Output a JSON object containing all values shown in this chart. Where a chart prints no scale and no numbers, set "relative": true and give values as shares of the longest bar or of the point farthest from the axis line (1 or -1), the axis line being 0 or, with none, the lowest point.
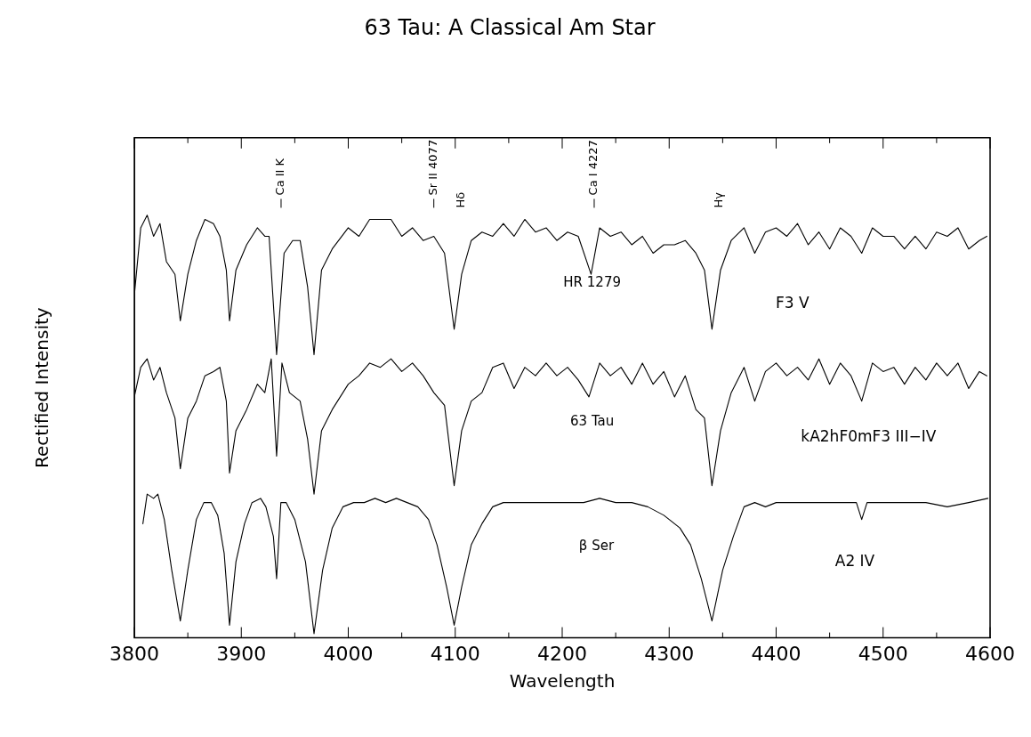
{
  "chart_data": {
    "type": "line",
    "title": "63 Tau: A Classical Am Star",
    "xlabel": "Wavelength",
    "ylabel": "Rectified Intensity",
    "relative": true,
    "xlim": [
      3800,
      4600
    ],
    "xticks": [
      3800,
      3900,
      4000,
      4100,
      4200,
      4300,
      4400,
      4500,
      4600
    ],
    "grid": false,
    "legend": false,
    "marker": "none",
    "line_style": "solid",
    "annotations": [
      "Ca II K",
      "Sr II 4077",
      "Hδ",
      "Ca I 4227",
      "Hγ",
      "F3 V",
      "kA2hF0mF3 III−IV",
      "A2 IV"
    ],
    "series": [
      {
        "name": "HR 1279",
        "color": "#000000",
        "x": [
          3800,
          3806,
          3812,
          3818,
          3824,
          3830,
          3838,
          3843,
          3850,
          3858,
          3866,
          3874,
          3880,
          3886,
          3889,
          3895,
          3905,
          3915,
          3922,
          3926,
          3933,
          3940,
          3948,
          3955,
          3962,
          3968,
          3975,
          3985,
          4000,
          4010,
          4020,
          4030,
          4040,
          4050,
          4060,
          4070,
          4080,
          4090,
          4099,
          4106,
          4115,
          4125,
          4135,
          4145,
          4155,
          4165,
          4175,
          4185,
          4195,
          4205,
          4215,
          4227,
          4235,
          4245,
          4255,
          4265,
          4275,
          4285,
          4295,
          4305,
          4315,
          4325,
          4333,
          4340,
          4348,
          4358,
          4370,
          4380,
          4390,
          4400,
          4410,
          4420,
          4430,
          4440,
          4450,
          4460,
          4470,
          4480,
          4490,
          4500,
          4510,
          4520,
          4530,
          4540,
          4550,
          4560,
          4570,
          4580,
          4590,
          4597
        ],
        "values": [
          0.81,
          0.97,
          1.0,
          0.95,
          0.98,
          0.89,
          0.86,
          0.75,
          0.86,
          0.94,
          0.99,
          0.98,
          0.95,
          0.87,
          0.75,
          0.87,
          0.93,
          0.97,
          0.95,
          0.95,
          0.67,
          0.91,
          0.94,
          0.94,
          0.83,
          0.67,
          0.87,
          0.92,
          0.97,
          0.95,
          0.99,
          0.99,
          0.99,
          0.95,
          0.97,
          0.94,
          0.95,
          0.91,
          0.73,
          0.86,
          0.94,
          0.96,
          0.95,
          0.98,
          0.95,
          0.99,
          0.96,
          0.97,
          0.94,
          0.96,
          0.95,
          0.86,
          0.97,
          0.95,
          0.96,
          0.93,
          0.95,
          0.91,
          0.93,
          0.93,
          0.94,
          0.91,
          0.87,
          0.73,
          0.87,
          0.94,
          0.97,
          0.91,
          0.96,
          0.97,
          0.95,
          0.98,
          0.93,
          0.96,
          0.92,
          0.97,
          0.95,
          0.91,
          0.97,
          0.95,
          0.95,
          0.92,
          0.95,
          0.92,
          0.96,
          0.95,
          0.97,
          0.92,
          0.94,
          0.95
        ]
      },
      {
        "name": "63 Tau",
        "color": "#000000",
        "x": [
          3800,
          3806,
          3812,
          3818,
          3824,
          3830,
          3838,
          3843,
          3850,
          3858,
          3866,
          3874,
          3880,
          3886,
          3889,
          3895,
          3905,
          3915,
          3922,
          3928,
          3933,
          3938,
          3945,
          3955,
          3962,
          3968,
          3975,
          3985,
          4000,
          4010,
          4020,
          4030,
          4040,
          4050,
          4060,
          4070,
          4080,
          4090,
          4099,
          4106,
          4115,
          4125,
          4135,
          4145,
          4155,
          4165,
          4175,
          4185,
          4195,
          4205,
          4215,
          4225,
          4235,
          4245,
          4255,
          4265,
          4275,
          4285,
          4295,
          4305,
          4315,
          4325,
          4333,
          4340,
          4348,
          4358,
          4370,
          4380,
          4390,
          4400,
          4410,
          4420,
          4430,
          4440,
          4450,
          4460,
          4470,
          4480,
          4490,
          4500,
          4510,
          4520,
          4530,
          4540,
          4550,
          4560,
          4570,
          4580,
          4590,
          4597
        ],
        "values": [
          0.57,
          0.64,
          0.66,
          0.61,
          0.64,
          0.58,
          0.52,
          0.4,
          0.52,
          0.56,
          0.62,
          0.63,
          0.64,
          0.56,
          0.39,
          0.49,
          0.54,
          0.6,
          0.58,
          0.66,
          0.43,
          0.65,
          0.58,
          0.56,
          0.47,
          0.34,
          0.49,
          0.54,
          0.6,
          0.62,
          0.65,
          0.64,
          0.66,
          0.63,
          0.65,
          0.62,
          0.58,
          0.55,
          0.36,
          0.49,
          0.56,
          0.58,
          0.64,
          0.65,
          0.59,
          0.64,
          0.62,
          0.65,
          0.62,
          0.64,
          0.61,
          0.57,
          0.65,
          0.62,
          0.64,
          0.6,
          0.65,
          0.6,
          0.63,
          0.57,
          0.62,
          0.54,
          0.52,
          0.36,
          0.49,
          0.58,
          0.64,
          0.56,
          0.63,
          0.65,
          0.62,
          0.64,
          0.61,
          0.66,
          0.6,
          0.65,
          0.62,
          0.56,
          0.65,
          0.63,
          0.64,
          0.6,
          0.64,
          0.61,
          0.65,
          0.62,
          0.65,
          0.59,
          0.63,
          0.62
        ]
      },
      {
        "name": "β Ser",
        "color": "#000000",
        "x": [
          3808,
          3812,
          3818,
          3822,
          3828,
          3835,
          3843,
          3850,
          3858,
          3865,
          3872,
          3878,
          3884,
          3889,
          3895,
          3903,
          3910,
          3918,
          3923,
          3930,
          3933,
          3937,
          3942,
          3950,
          3960,
          3968,
          3976,
          3985,
          3995,
          4005,
          4015,
          4025,
          4035,
          4045,
          4055,
          4065,
          4075,
          4083,
          4092,
          4099,
          4106,
          4115,
          4125,
          4135,
          4145,
          4160,
          4175,
          4190,
          4205,
          4220,
          4235,
          4250,
          4265,
          4280,
          4295,
          4310,
          4320,
          4330,
          4340,
          4350,
          4360,
          4370,
          4380,
          4390,
          4400,
          4415,
          4430,
          4445,
          4460,
          4475,
          4480,
          4485,
          4500,
          4520,
          4540,
          4560,
          4580,
          4598
        ],
        "values": [
          0.27,
          0.34,
          0.33,
          0.34,
          0.28,
          0.16,
          0.04,
          0.16,
          0.28,
          0.32,
          0.32,
          0.29,
          0.2,
          0.03,
          0.18,
          0.27,
          0.32,
          0.33,
          0.31,
          0.24,
          0.14,
          0.32,
          0.32,
          0.28,
          0.18,
          0.01,
          0.16,
          0.26,
          0.31,
          0.32,
          0.32,
          0.33,
          0.32,
          0.33,
          0.32,
          0.31,
          0.28,
          0.22,
          0.12,
          0.03,
          0.12,
          0.22,
          0.27,
          0.31,
          0.32,
          0.32,
          0.32,
          0.32,
          0.32,
          0.32,
          0.33,
          0.32,
          0.32,
          0.31,
          0.29,
          0.26,
          0.22,
          0.14,
          0.04,
          0.16,
          0.24,
          0.31,
          0.32,
          0.31,
          0.32,
          0.32,
          0.32,
          0.32,
          0.32,
          0.32,
          0.28,
          0.32,
          0.32,
          0.32,
          0.32,
          0.31,
          0.32,
          0.33
        ]
      }
    ]
  }
}
